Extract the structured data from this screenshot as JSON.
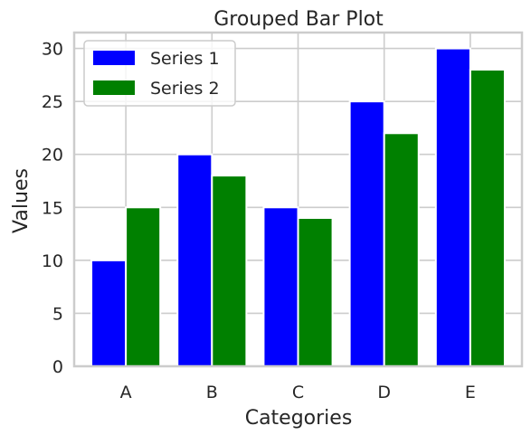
{
  "chart_data": {
    "type": "bar",
    "title": "Grouped Bar Plot",
    "xlabel": "Categories",
    "ylabel": "Values",
    "categories": [
      "A",
      "B",
      "C",
      "D",
      "E"
    ],
    "series": [
      {
        "name": "Series 1",
        "values": [
          10,
          20,
          15,
          25,
          30
        ],
        "color": "#0000ff"
      },
      {
        "name": "Series 2",
        "values": [
          15,
          18,
          14,
          22,
          28
        ],
        "color": "#008000"
      }
    ],
    "yticks": [
      0,
      5,
      10,
      15,
      20,
      25,
      30
    ],
    "ylim": [
      0,
      31.5
    ],
    "grid": true,
    "legend": "upper left"
  }
}
